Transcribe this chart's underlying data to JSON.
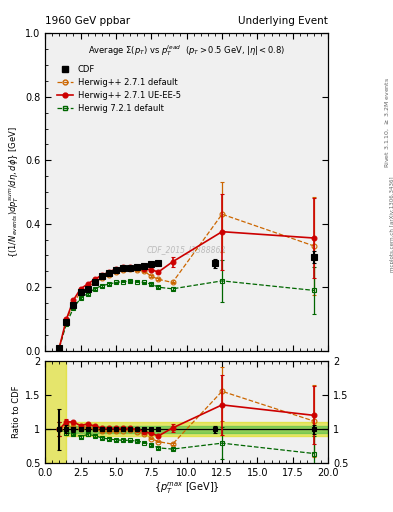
{
  "title_left": "1960 GeV ppbar",
  "title_right": "Underlying Event",
  "plot_title": "Average $\\Sigma(p_T)$ vs $p_T^{lead}$  ($p_T > 0.5$ GeV, $|\\eta| < 0.8$)",
  "ylabel_main": "$\\{(1/N_{events}) dp_T^{sum}/d\\eta, d\\phi\\}$ [GeV]",
  "ylabel_ratio": "Ratio to CDF",
  "xlabel": "$\\{p_T^{max}$ [GeV]$\\}$",
  "watermark": "CDF_2015_I1388868",
  "right_label_top": "Rivet 3.1.10, $\\geq$ 3.2M events",
  "right_label_bottom": "mcplots.cern.ch [arXiv:1306.3436]",
  "xlim": [
    0,
    20
  ],
  "ylim_main": [
    0,
    1.0
  ],
  "ylim_ratio": [
    0.5,
    2.0
  ],
  "cdf_x": [
    1.0,
    1.5,
    2.0,
    2.5,
    3.0,
    3.5,
    4.0,
    4.5,
    5.0,
    5.5,
    6.0,
    6.5,
    7.0,
    7.5,
    8.0,
    12.0,
    19.0
  ],
  "cdf_y": [
    0.01,
    0.09,
    0.145,
    0.185,
    0.195,
    0.215,
    0.235,
    0.245,
    0.255,
    0.26,
    0.262,
    0.264,
    0.267,
    0.272,
    0.275,
    0.275,
    0.295
  ],
  "cdf_yerr": [
    0.003,
    0.005,
    0.005,
    0.005,
    0.005,
    0.005,
    0.005,
    0.005,
    0.005,
    0.005,
    0.005,
    0.005,
    0.005,
    0.005,
    0.005,
    0.015,
    0.02
  ],
  "hw271_x": [
    1.0,
    1.5,
    2.0,
    2.5,
    3.0,
    3.5,
    4.0,
    4.5,
    5.0,
    5.5,
    6.0,
    6.5,
    7.0,
    7.5,
    8.0,
    9.0,
    12.5,
    19.0
  ],
  "hw271_y": [
    0.01,
    0.095,
    0.15,
    0.185,
    0.2,
    0.215,
    0.228,
    0.238,
    0.248,
    0.255,
    0.258,
    0.255,
    0.25,
    0.235,
    0.225,
    0.215,
    0.43,
    0.33
  ],
  "hw271_yerr_lo": [
    0.001,
    0.003,
    0.003,
    0.003,
    0.003,
    0.003,
    0.003,
    0.003,
    0.003,
    0.003,
    0.003,
    0.003,
    0.003,
    0.003,
    0.003,
    0.003,
    0.12,
    0.155
  ],
  "hw271_yerr_hi": [
    0.001,
    0.003,
    0.003,
    0.003,
    0.003,
    0.003,
    0.003,
    0.003,
    0.003,
    0.003,
    0.003,
    0.003,
    0.003,
    0.003,
    0.003,
    0.003,
    0.1,
    0.155
  ],
  "hw271ue_x": [
    1.0,
    1.5,
    2.0,
    2.5,
    3.0,
    3.5,
    4.0,
    4.5,
    5.0,
    5.5,
    6.0,
    6.5,
    7.0,
    7.5,
    8.0,
    9.0,
    12.5,
    19.0
  ],
  "hw271ue_y": [
    0.01,
    0.1,
    0.16,
    0.195,
    0.21,
    0.225,
    0.238,
    0.248,
    0.258,
    0.263,
    0.265,
    0.263,
    0.258,
    0.255,
    0.248,
    0.28,
    0.375,
    0.355
  ],
  "hw271ue_yerr_lo": [
    0.001,
    0.003,
    0.003,
    0.003,
    0.003,
    0.003,
    0.003,
    0.003,
    0.003,
    0.003,
    0.003,
    0.003,
    0.003,
    0.003,
    0.003,
    0.015,
    0.12,
    0.125
  ],
  "hw271ue_yerr_hi": [
    0.001,
    0.003,
    0.003,
    0.003,
    0.003,
    0.003,
    0.003,
    0.003,
    0.003,
    0.003,
    0.003,
    0.003,
    0.003,
    0.003,
    0.003,
    0.015,
    0.12,
    0.125
  ],
  "hw721_x": [
    1.0,
    1.5,
    2.0,
    2.5,
    3.0,
    3.5,
    4.0,
    4.5,
    5.0,
    5.5,
    6.0,
    6.5,
    7.0,
    7.5,
    8.0,
    9.0,
    12.5,
    19.0
  ],
  "hw721_y": [
    0.01,
    0.085,
    0.135,
    0.165,
    0.18,
    0.195,
    0.205,
    0.21,
    0.215,
    0.218,
    0.219,
    0.218,
    0.215,
    0.21,
    0.2,
    0.195,
    0.22,
    0.19
  ],
  "hw721_yerr_lo": [
    0.001,
    0.003,
    0.003,
    0.003,
    0.003,
    0.003,
    0.003,
    0.003,
    0.003,
    0.003,
    0.003,
    0.003,
    0.003,
    0.003,
    0.003,
    0.005,
    0.065,
    0.075
  ],
  "hw721_yerr_hi": [
    0.001,
    0.003,
    0.003,
    0.003,
    0.003,
    0.003,
    0.003,
    0.003,
    0.003,
    0.003,
    0.003,
    0.003,
    0.003,
    0.003,
    0.003,
    0.005,
    0.065,
    0.075
  ],
  "cdf_color": "#000000",
  "hw271_color": "#cc6600",
  "hw271ue_color": "#cc0000",
  "hw721_color": "#006600",
  "band_green": "#44bb44",
  "band_yellow": "#dddd00",
  "bg_color": "#f0f0f0"
}
